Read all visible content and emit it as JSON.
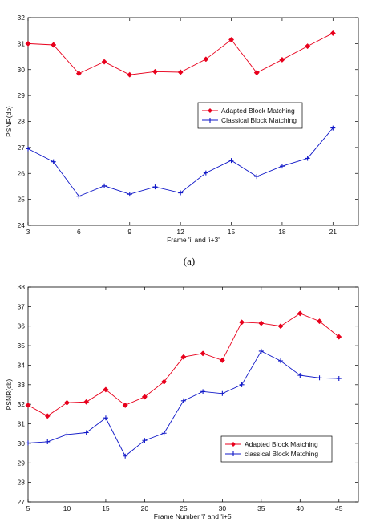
{
  "caption_a": "(a)",
  "chart_data": [
    {
      "type": "line",
      "xlabel": "Frame 'i' and 'i+3'",
      "ylabel": "PSNR(db)",
      "xlim": [
        3,
        22.5
      ],
      "ylim": [
        24,
        32
      ],
      "xticks": [
        3,
        6,
        9,
        12,
        15,
        18,
        21
      ],
      "yticks": [
        24,
        25,
        26,
        27,
        28,
        29,
        30,
        31,
        32
      ],
      "legend": "center-right",
      "series": [
        {
          "name": "Adapted Block Matching",
          "color": "#e8001c",
          "marker": "diamond",
          "x": [
            3,
            4.5,
            6,
            7.5,
            9,
            10.5,
            12,
            13.5,
            15,
            16.5,
            18,
            19.5,
            21
          ],
          "y": [
            31.0,
            30.95,
            29.85,
            30.3,
            29.8,
            29.92,
            29.9,
            30.4,
            31.15,
            29.88,
            30.38,
            30.9,
            31.4
          ]
        },
        {
          "name": "Classical Block Matching",
          "color": "#1018c8",
          "marker": "plus",
          "x": [
            3,
            4.5,
            6,
            7.5,
            9,
            10.5,
            12,
            13.5,
            15,
            16.5,
            18,
            19.5,
            21
          ],
          "y": [
            26.95,
            26.45,
            25.12,
            25.52,
            25.2,
            25.48,
            25.25,
            26.02,
            26.5,
            25.88,
            26.28,
            26.58,
            27.75
          ]
        }
      ]
    },
    {
      "type": "line",
      "xlabel": "Frame Number 'i' and 'i+5'",
      "ylabel": "PSNR(db)",
      "xlim": [
        5,
        47.5
      ],
      "ylim": [
        27,
        38
      ],
      "xticks": [
        5,
        10,
        15,
        20,
        25,
        30,
        35,
        40,
        45
      ],
      "yticks": [
        27,
        28,
        29,
        30,
        31,
        32,
        33,
        34,
        35,
        36,
        37,
        38
      ],
      "legend": "center-right",
      "series": [
        {
          "name": "Adapted Block Matching",
          "color": "#e8001c",
          "marker": "diamond",
          "x": [
            5,
            7.5,
            10,
            12.5,
            15,
            17.5,
            20,
            22.5,
            25,
            27.5,
            30,
            32.5,
            35,
            37.5,
            40,
            42.5,
            45
          ],
          "y": [
            31.95,
            31.4,
            32.08,
            32.12,
            32.75,
            31.95,
            32.38,
            33.15,
            34.42,
            34.6,
            34.25,
            36.2,
            36.15,
            36.0,
            36.65,
            36.25,
            35.45
          ]
        },
        {
          "name": "classical Block Matching",
          "color": "#1018c8",
          "marker": "plus",
          "x": [
            5,
            7.5,
            10,
            12.5,
            15,
            17.5,
            20,
            22.5,
            25,
            27.5,
            30,
            32.5,
            35,
            37.5,
            40,
            42.5,
            45
          ],
          "y": [
            30.02,
            30.08,
            30.45,
            30.55,
            31.3,
            29.35,
            30.15,
            30.52,
            32.18,
            32.65,
            32.55,
            33.0,
            34.72,
            34.22,
            33.48,
            33.35,
            33.32
          ]
        }
      ]
    }
  ]
}
